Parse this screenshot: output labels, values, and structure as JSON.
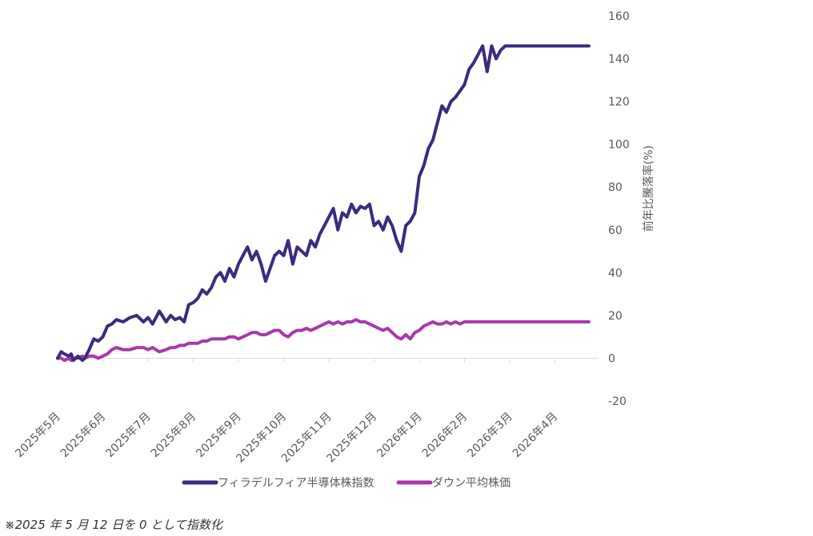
{
  "chart_data": {
    "type": "line",
    "ylabel": "前年比騰落率(%)",
    "ylim": [
      -20,
      160
    ],
    "yticks": [
      -20,
      0,
      20,
      40,
      60,
      80,
      100,
      120,
      140,
      160
    ],
    "categories": [
      "2025年5月",
      "2025年6月",
      "2025年7月",
      "2025年8月",
      "2025年9月",
      "2025年10月",
      "2025年11月",
      "2025年12月",
      "2026年1月",
      "2026年2月",
      "2026年3月",
      "2026年4月"
    ],
    "grid": false,
    "legend_position": "bottom",
    "series": [
      {
        "name": "フィラデルフィア半導体株指数",
        "color": "#3d2a7e",
        "x": [
          0,
          0.08,
          0.15,
          0.25,
          0.3,
          0.35,
          0.45,
          0.55,
          0.6,
          0.7,
          0.8,
          0.9,
          1.0,
          1.1,
          1.2,
          1.3,
          1.45,
          1.6,
          1.75,
          1.9,
          2.0,
          2.1,
          2.25,
          2.4,
          2.5,
          2.6,
          2.7,
          2.8,
          2.9,
          3.0,
          3.1,
          3.2,
          3.3,
          3.4,
          3.5,
          3.6,
          3.7,
          3.8,
          3.9,
          4.0,
          4.1,
          4.2,
          4.3,
          4.4,
          4.5,
          4.6,
          4.7,
          4.8,
          4.9,
          5.0,
          5.1,
          5.2,
          5.3,
          5.4,
          5.5,
          5.6,
          5.7,
          5.8,
          5.9,
          6.0,
          6.1,
          6.2,
          6.3,
          6.4,
          6.5,
          6.6,
          6.7,
          6.8,
          6.9,
          7.0,
          7.1,
          7.2,
          7.3,
          7.4,
          7.5,
          7.6,
          7.7,
          7.8,
          7.9,
          8.0,
          8.1,
          8.2,
          8.3,
          8.4,
          8.5,
          8.6,
          8.7,
          8.8,
          8.9,
          9.0,
          9.1,
          9.2,
          9.3,
          9.4,
          9.5,
          9.6,
          9.7,
          9.8,
          9.9,
          10.0,
          10.1,
          10.2,
          10.3,
          10.4,
          10.5,
          10.6,
          10.7,
          10.8,
          10.9,
          11.0,
          11.1,
          11.2,
          11.3,
          11.4,
          11.5,
          11.6,
          11.65,
          11.7,
          11.75
        ],
        "values": [
          0,
          3,
          2,
          1,
          2,
          -1,
          1,
          -1,
          0,
          4,
          9,
          8,
          10,
          15,
          16,
          18,
          17,
          19,
          20,
          17,
          19,
          16,
          22,
          17,
          20,
          18,
          19,
          17,
          25,
          26,
          28,
          32,
          30,
          33,
          38,
          40,
          36,
          42,
          38,
          44,
          48,
          52,
          46,
          50,
          44,
          36,
          42,
          48,
          50,
          48,
          55,
          44,
          52,
          50,
          48,
          55,
          52,
          58,
          62,
          66,
          70,
          60,
          68,
          66,
          72,
          68,
          71,
          70,
          72,
          62,
          64,
          60,
          66,
          62,
          55,
          50,
          62,
          64,
          68,
          85,
          90,
          98,
          102,
          110,
          118,
          115,
          120,
          122,
          125,
          128,
          135,
          138,
          142,
          146,
          134,
          146,
          140,
          144,
          146,
          146,
          146,
          146,
          146,
          146,
          146,
          146,
          146,
          146,
          146,
          146,
          146,
          146,
          146,
          146,
          146,
          146,
          146,
          146,
          146
        ]
      },
      {
        "name": "ダウン平均株価",
        "color": "#a63aa8",
        "x": [
          0,
          0.08,
          0.15,
          0.25,
          0.3,
          0.35,
          0.45,
          0.55,
          0.6,
          0.7,
          0.8,
          0.9,
          1.0,
          1.1,
          1.2,
          1.3,
          1.45,
          1.6,
          1.75,
          1.9,
          2.0,
          2.1,
          2.25,
          2.4,
          2.5,
          2.6,
          2.7,
          2.8,
          2.9,
          3.0,
          3.1,
          3.2,
          3.3,
          3.4,
          3.5,
          3.6,
          3.7,
          3.8,
          3.9,
          4.0,
          4.1,
          4.2,
          4.3,
          4.4,
          4.5,
          4.6,
          4.7,
          4.8,
          4.9,
          5.0,
          5.1,
          5.2,
          5.3,
          5.4,
          5.5,
          5.6,
          5.7,
          5.8,
          5.9,
          6.0,
          6.1,
          6.2,
          6.3,
          6.4,
          6.5,
          6.6,
          6.7,
          6.8,
          6.9,
          7.0,
          7.1,
          7.2,
          7.3,
          7.4,
          7.5,
          7.6,
          7.7,
          7.8,
          7.9,
          8.0,
          8.1,
          8.2,
          8.3,
          8.4,
          8.5,
          8.6,
          8.7,
          8.8,
          8.9,
          9.0,
          9.1,
          9.2,
          9.3,
          9.4,
          9.5,
          9.6,
          9.7,
          9.8,
          9.9,
          10.0,
          10.1,
          10.2,
          10.3,
          10.4,
          10.5,
          10.6,
          10.7,
          10.8,
          10.9,
          11.0,
          11.1,
          11.2,
          11.3,
          11.4,
          11.5,
          11.6,
          11.65,
          11.7,
          11.75
        ],
        "values": [
          0,
          0,
          -1,
          0,
          -1,
          0,
          0,
          1,
          0,
          1,
          1,
          0,
          1,
          2,
          4,
          5,
          4,
          4,
          5,
          5,
          4,
          5,
          3,
          4,
          5,
          5,
          6,
          6,
          7,
          7,
          7,
          8,
          8,
          9,
          9,
          9,
          9,
          10,
          10,
          9,
          10,
          11,
          12,
          12,
          11,
          11,
          12,
          13,
          13,
          11,
          10,
          12,
          13,
          13,
          14,
          13,
          14,
          15,
          16,
          17,
          16,
          17,
          16,
          17,
          17,
          18,
          17,
          17,
          16,
          15,
          14,
          13,
          14,
          12,
          10,
          9,
          11,
          9,
          12,
          13,
          15,
          16,
          17,
          16,
          16,
          17,
          16,
          17,
          16,
          17,
          17,
          17,
          17,
          17,
          17,
          17,
          17,
          17,
          17,
          17,
          17,
          17,
          17,
          17,
          17,
          17,
          17,
          17,
          17,
          17,
          17,
          17,
          17,
          17,
          17,
          17,
          17,
          17,
          17
        ]
      }
    ]
  },
  "footnote": "※2025 年 5 月 12 日を 0 として指数化"
}
